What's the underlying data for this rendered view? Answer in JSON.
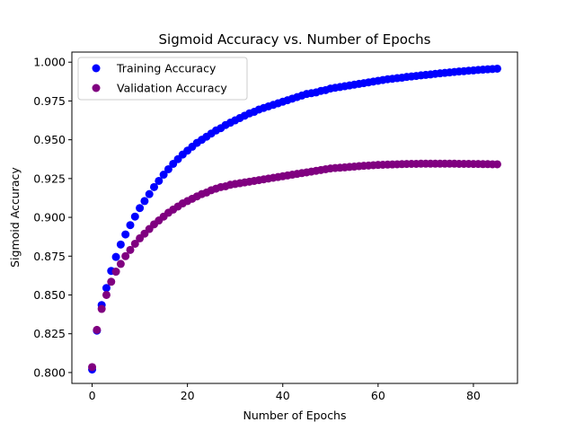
{
  "chart_data": {
    "type": "scatter",
    "title": "Sigmoid Accuracy vs. Number of Epochs",
    "xlabel": "Number of Epochs",
    "ylabel": "Sigmoid Accuracy",
    "xlim": [
      -4.25,
      89.25
    ],
    "ylim": [
      0.793,
      1.0065
    ],
    "x_ticks": [
      0,
      20,
      40,
      60,
      80
    ],
    "y_ticks": [
      0.8,
      0.825,
      0.85,
      0.875,
      0.9,
      0.925,
      0.95,
      0.975,
      1.0
    ],
    "x_tick_labels": [
      "0",
      "20",
      "40",
      "60",
      "80"
    ],
    "y_tick_labels": [
      "0.800",
      "0.825",
      "0.850",
      "0.875",
      "0.900",
      "0.925",
      "0.950",
      "0.975",
      "1.000"
    ],
    "grid": false,
    "legend_position": "upper-left",
    "x": [
      0,
      1,
      2,
      3,
      4,
      5,
      6,
      7,
      8,
      9,
      10,
      11,
      12,
      13,
      14,
      15,
      16,
      17,
      18,
      19,
      20,
      21,
      22,
      23,
      24,
      25,
      26,
      27,
      28,
      29,
      30,
      31,
      32,
      33,
      34,
      35,
      36,
      37,
      38,
      39,
      40,
      41,
      42,
      43,
      44,
      45,
      46,
      47,
      48,
      49,
      50,
      51,
      52,
      53,
      54,
      55,
      56,
      57,
      58,
      59,
      60,
      61,
      62,
      63,
      64,
      65,
      66,
      67,
      68,
      69,
      70,
      71,
      72,
      73,
      74,
      75,
      76,
      77,
      78,
      79,
      80,
      81,
      82,
      83,
      84,
      85
    ],
    "series": [
      {
        "name": "Training Accuracy",
        "color": "#0000ff",
        "values": [
          0.802,
          0.827,
          0.8435,
          0.8545,
          0.8655,
          0.8745,
          0.8825,
          0.889,
          0.895,
          0.9005,
          0.906,
          0.9105,
          0.915,
          0.9195,
          0.9235,
          0.9275,
          0.931,
          0.9345,
          0.9375,
          0.9405,
          0.943,
          0.9455,
          0.948,
          0.95,
          0.952,
          0.954,
          0.956,
          0.9575,
          0.9595,
          0.961,
          0.9625,
          0.964,
          0.9655,
          0.967,
          0.968,
          0.9695,
          0.9705,
          0.9715,
          0.9725,
          0.9735,
          0.9745,
          0.9755,
          0.9765,
          0.9775,
          0.9785,
          0.9795,
          0.98,
          0.9805,
          0.9815,
          0.982,
          0.983,
          0.9835,
          0.984,
          0.9845,
          0.985,
          0.9855,
          0.986,
          0.9865,
          0.987,
          0.9875,
          0.988,
          0.9885,
          0.989,
          0.9893,
          0.9897,
          0.99,
          0.9905,
          0.9908,
          0.9911,
          0.9915,
          0.9918,
          0.9921,
          0.9925,
          0.9928,
          0.9931,
          0.9934,
          0.9937,
          0.994,
          0.9942,
          0.9945,
          0.9947,
          0.995,
          0.9952,
          0.9954,
          0.9956,
          0.9958
        ]
      },
      {
        "name": "Validation Accuracy",
        "color": "#800080",
        "values": [
          0.8035,
          0.8275,
          0.841,
          0.85,
          0.8585,
          0.865,
          0.87,
          0.875,
          0.879,
          0.883,
          0.8865,
          0.8895,
          0.8925,
          0.8955,
          0.898,
          0.9005,
          0.903,
          0.905,
          0.907,
          0.909,
          0.9105,
          0.912,
          0.9135,
          0.915,
          0.916,
          0.9175,
          0.9185,
          0.9195,
          0.92,
          0.921,
          0.9215,
          0.922,
          0.9225,
          0.923,
          0.9235,
          0.924,
          0.9245,
          0.925,
          0.9255,
          0.926,
          0.9265,
          0.927,
          0.9275,
          0.928,
          0.9285,
          0.929,
          0.9295,
          0.93,
          0.9305,
          0.931,
          0.9315,
          0.9318,
          0.932,
          0.9322,
          0.9325,
          0.9327,
          0.933,
          0.9332,
          0.9334,
          0.9336,
          0.9338,
          0.9339,
          0.934,
          0.9341,
          0.9342,
          0.9343,
          0.9344,
          0.9345,
          0.9345,
          0.9346,
          0.9346,
          0.9346,
          0.9346,
          0.9346,
          0.9346,
          0.9346,
          0.9346,
          0.9345,
          0.9345,
          0.9345,
          0.9344,
          0.9344,
          0.9343,
          0.9343,
          0.9342,
          0.9342
        ]
      }
    ]
  }
}
